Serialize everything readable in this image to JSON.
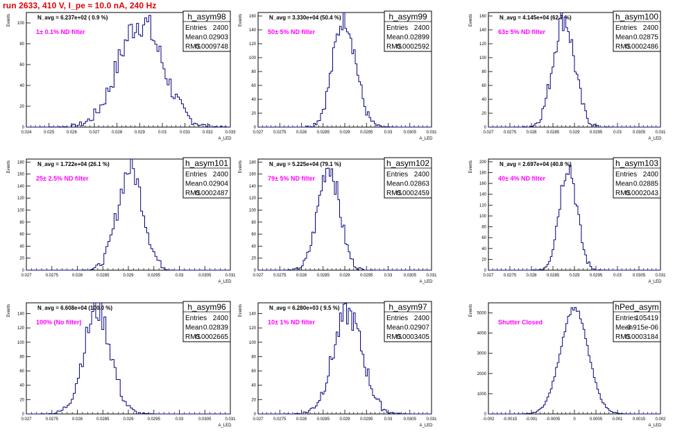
{
  "title": "run 2633,   410 V, I_pe ≈ 10.0 nA, 240 Hz",
  "chart_data": [
    {
      "type": "histogram",
      "name": "h_asym98",
      "annotation": "N_avg = 6.237e+02 ( 0.9 %)",
      "filter": "1± 0.1% ND filter",
      "stats": {
        "Entries": "2400",
        "Mean": "0.02903",
        "RMS": "0.0009748"
      },
      "xlabel": "A_LED",
      "ylabel": "Events",
      "xlim": [
        0.024,
        0.033
      ],
      "ylim": [
        0,
        110
      ],
      "xticks": [
        "0.024",
        "0.025",
        "0.026",
        "0.027",
        "0.028",
        "0.029",
        "0.03",
        "0.031",
        "0.032",
        "0.033"
      ],
      "yticks": [
        "0",
        "20",
        "40",
        "60",
        "80",
        "100"
      ],
      "mean": 0.02903,
      "rms": 0.0009748,
      "peak": 102,
      "entries": 2400
    },
    {
      "type": "histogram",
      "name": "h_asym99",
      "annotation": "N_avg = 3.330e+04 (50.4 %)",
      "filter": "50± 5% ND filter",
      "stats": {
        "Entries": "2400",
        "Mean": "0.02899",
        "RMS": "0.0002592"
      },
      "xlabel": "A_LED",
      "ylabel": "Events",
      "xlim": [
        0.027,
        0.031
      ],
      "ylim": [
        0,
        165
      ],
      "xticks": [
        "0.027",
        "0.0275",
        "0.028",
        "0.0285",
        "0.029",
        "0.0295",
        "0.03",
        "0.0305",
        "0.031"
      ],
      "yticks": [
        "0",
        "20",
        "40",
        "60",
        "80",
        "100",
        "120",
        "140",
        "160"
      ],
      "mean": 0.02899,
      "rms": 0.0002592,
      "peak": 160,
      "entries": 2400
    },
    {
      "type": "histogram",
      "name": "h_asym100",
      "annotation": "N_avg = 4.145e+04 (62.7 %)",
      "filter": "63± 5% ND filter",
      "stats": {
        "Entries": "2400",
        "Mean": "0.02875",
        "RMS": "0.0002486"
      },
      "xlabel": "A_LED",
      "ylabel": "Events",
      "xlim": [
        0.027,
        0.031
      ],
      "ylim": [
        0,
        165
      ],
      "xticks": [
        "0.027",
        "0.0275",
        "0.028",
        "0.0285",
        "0.029",
        "0.0295",
        "0.03",
        "0.0305",
        "0.031"
      ],
      "yticks": [
        "0",
        "20",
        "40",
        "60",
        "80",
        "100",
        "120",
        "140",
        "160"
      ],
      "mean": 0.02875,
      "rms": 0.0002486,
      "peak": 158,
      "entries": 2400
    },
    {
      "type": "histogram",
      "name": "h_asym101",
      "annotation": "N_avg = 1.722e+04 (26.1 %)",
      "filter": "25± 2.5% ND filter",
      "stats": {
        "Entries": "2400",
        "Mean": "0.02904",
        "RMS": "0.0002487"
      },
      "xlabel": "A_LED",
      "ylabel": "Events",
      "xlim": [
        0.027,
        0.031
      ],
      "ylim": [
        0,
        185
      ],
      "xticks": [
        "0.027",
        "0.0275",
        "0.028",
        "0.0285",
        "0.029",
        "0.0295",
        "0.03",
        "0.0305",
        "0.031"
      ],
      "yticks": [
        "0",
        "20",
        "40",
        "60",
        "80",
        "100",
        "120",
        "140",
        "160",
        "180"
      ],
      "mean": 0.02904,
      "rms": 0.0002487,
      "peak": 170,
      "entries": 2400
    },
    {
      "type": "histogram",
      "name": "h_asym102",
      "annotation": "N_avg = 5.225e+04 (79.1 %)",
      "filter": "79± 5% ND filter",
      "stats": {
        "Entries": "2400",
        "Mean": "0.02863",
        "RMS": "0.0002459"
      },
      "xlabel": "A_LED",
      "ylabel": "Events",
      "xlim": [
        0.027,
        0.031
      ],
      "ylim": [
        0,
        185
      ],
      "xticks": [
        "0.027",
        "0.0275",
        "0.028",
        "0.0285",
        "0.029",
        "0.0295",
        "0.03",
        "0.0305",
        "0.031"
      ],
      "yticks": [
        "0",
        "20",
        "40",
        "60",
        "80",
        "100",
        "120",
        "140",
        "160",
        "180"
      ],
      "mean": 0.02863,
      "rms": 0.0002459,
      "peak": 175,
      "entries": 2400
    },
    {
      "type": "histogram",
      "name": "h_asym103",
      "annotation": "N_avg = 2.697e+04 (40.8 %)",
      "filter": "40± 4% ND filter",
      "stats": {
        "Entries": "2400",
        "Mean": "0.02885",
        "RMS": "0.0002043"
      },
      "xlabel": "A_LED",
      "ylabel": "Events",
      "xlim": [
        0.027,
        0.031
      ],
      "ylim": [
        0,
        205
      ],
      "xticks": [
        "0.027",
        "0.0275",
        "0.028",
        "0.0285",
        "0.029",
        "0.0295",
        "0.03",
        "0.0305",
        "0.031"
      ],
      "yticks": [
        "0",
        "20",
        "40",
        "60",
        "80",
        "100",
        "120",
        "140",
        "160",
        "180",
        "200"
      ],
      "mean": 0.02885,
      "rms": 0.0002043,
      "peak": 195,
      "entries": 2400
    },
    {
      "type": "histogram",
      "name": "h_asym96",
      "annotation": "N_avg = 6.608e+04 (100.0 %)",
      "filter": "100% (No filter)",
      "stats": {
        "Entries": "2400",
        "Mean": "0.02839",
        "RMS": "0.0002665"
      },
      "xlabel": "A_LED",
      "ylabel": "Events",
      "xlim": [
        0.027,
        0.031
      ],
      "ylim": [
        0,
        155
      ],
      "xticks": [
        "0.027",
        "0.0275",
        "0.028",
        "0.0285",
        "0.029",
        "0.0295",
        "0.03",
        "0.0305",
        "0.031"
      ],
      "yticks": [
        "0",
        "20",
        "40",
        "60",
        "80",
        "100",
        "120",
        "140"
      ],
      "mean": 0.02839,
      "rms": 0.0002665,
      "peak": 145,
      "entries": 2400
    },
    {
      "type": "histogram",
      "name": "h_asym97",
      "annotation": "N_avg = 6.280e+03 ( 9.5 %)",
      "filter": "10± 1% ND filter",
      "stats": {
        "Entries": "2400",
        "Mean": "0.02907",
        "RMS": "0.0003405"
      },
      "xlabel": "A_LED",
      "ylabel": "Events",
      "xlim": [
        0.027,
        0.031
      ],
      "ylim": [
        0,
        155
      ],
      "xticks": [
        "0.027",
        "0.0275",
        "0.028",
        "0.0285",
        "0.029",
        "0.0295",
        "0.03",
        "0.0305",
        "0.031"
      ],
      "yticks": [
        "0",
        "20",
        "40",
        "60",
        "80",
        "100",
        "120",
        "140"
      ],
      "mean": 0.02907,
      "rms": 0.0003405,
      "peak": 140,
      "entries": 2400
    },
    {
      "type": "histogram",
      "name": "hPed_asym",
      "annotation": "",
      "filter": "Shutter Closed",
      "stats": {
        "Entries": "105419",
        "Mean": "-3.915e-06",
        "RMS": "0.0003184"
      },
      "xlabel": "A_LED",
      "ylabel": "Events",
      "xlim": [
        -0.002,
        0.002
      ],
      "ylim": [
        0,
        5500
      ],
      "xticks": [
        "-0.002",
        "-0.0015",
        "-0.001",
        "-0.0005",
        "0",
        "0.0005",
        "0.001",
        "0.0015",
        "0.002"
      ],
      "yticks": [
        "0",
        "1000",
        "2000",
        "3000",
        "4000",
        "5000"
      ],
      "mean": -3.915e-06,
      "rms": 0.0003184,
      "peak": 5250,
      "entries": 105419
    }
  ]
}
